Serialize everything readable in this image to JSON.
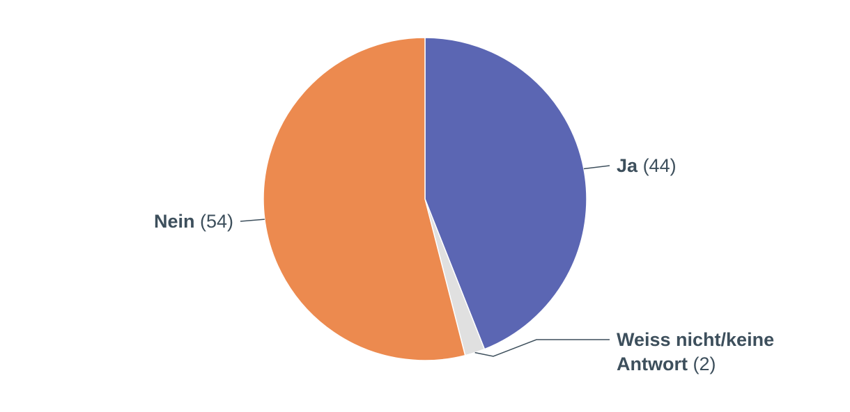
{
  "chart_data": {
    "type": "pie",
    "categories": [
      "Ja",
      "Weiss nicht/keine Antwort",
      "Nein"
    ],
    "values": [
      44,
      2,
      54
    ],
    "value_labels": [
      "(44)",
      "(2)",
      "(54)"
    ],
    "colors": [
      "#5b66b3",
      "#e0e0e0",
      "#ec8a4f"
    ]
  }
}
